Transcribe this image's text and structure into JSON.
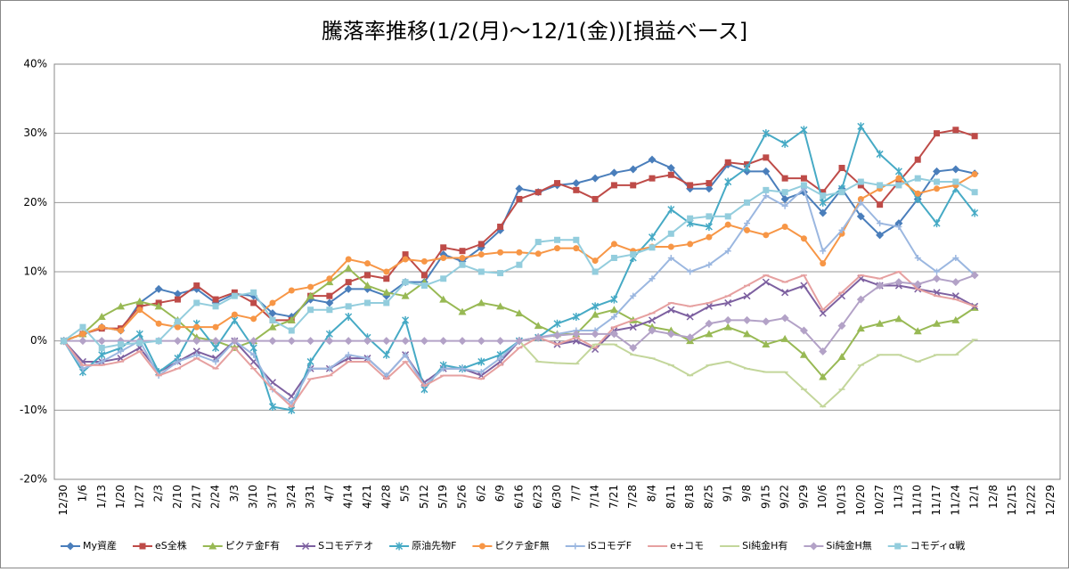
{
  "chart_data": {
    "type": "line",
    "title": "騰落率推移(1/2(月)～12/1(金))[損益ベース]",
    "categories": [
      "12/30",
      "1/6",
      "1/13",
      "1/20",
      "1/27",
      "2/3",
      "2/10",
      "2/17",
      "2/24",
      "3/3",
      "3/10",
      "3/17",
      "3/24",
      "3/31",
      "4/7",
      "4/14",
      "4/21",
      "4/28",
      "5/5",
      "5/12",
      "5/19",
      "5/26",
      "6/2",
      "6/9",
      "6/16",
      "6/23",
      "6/30",
      "7/7",
      "7/14",
      "7/21",
      "7/28",
      "8/4",
      "8/11",
      "8/18",
      "8/25",
      "9/1",
      "9/8",
      "9/15",
      "9/22",
      "9/29",
      "10/6",
      "10/13",
      "10/20",
      "10/27",
      "11/3",
      "11/10",
      "11/17",
      "11/24",
      "12/1",
      "12/8",
      "12/15",
      "12/22",
      "12/29"
    ],
    "ylim": [
      -20,
      40
    ],
    "yticks": [
      {
        "value": -20,
        "label": "-20%"
      },
      {
        "value": -10,
        "label": "-10%"
      },
      {
        "value": 0,
        "label": "0%"
      },
      {
        "value": 10,
        "label": "10%"
      },
      {
        "value": 20,
        "label": "20%"
      },
      {
        "value": 30,
        "label": "30%"
      },
      {
        "value": 40,
        "label": "40%"
      }
    ],
    "grid": true,
    "legend": "bottom",
    "series": [
      {
        "name": "My資産",
        "color": "#4a7ebb",
        "marker": "diamond",
        "values": [
          0,
          1,
          2,
          1.5,
          5.5,
          7.5,
          6.8,
          7.5,
          5.5,
          6.8,
          6.5,
          4,
          3.5,
          6,
          5.5,
          7.5,
          7.5,
          6.5,
          8.5,
          8.5,
          12.5,
          11.5,
          13.5,
          16,
          22,
          21.5,
          22.5,
          22.8,
          23.5,
          24.3,
          24.8,
          26.2,
          25,
          22,
          22,
          25.5,
          24.5,
          24.5,
          20.5,
          21.5,
          18.5,
          22,
          18,
          15.3,
          17,
          20.5,
          24.5,
          24.8,
          24.2,
          null,
          null,
          null,
          null
        ]
      },
      {
        "name": "eS全株",
        "color": "#be4b48",
        "marker": "square",
        "values": [
          0,
          1,
          1.8,
          1.8,
          5,
          5.5,
          6,
          8,
          6,
          7,
          5.5,
          3,
          3,
          6.5,
          6.5,
          8.5,
          9.5,
          9,
          12.5,
          9.5,
          13.5,
          13,
          14,
          16.5,
          20.5,
          21.5,
          22.8,
          21.8,
          20.5,
          22.5,
          22.5,
          23.5,
          24,
          22.5,
          22.8,
          25.8,
          25.5,
          26.5,
          23.5,
          23.5,
          21.5,
          25,
          22.5,
          19.7,
          23,
          26.2,
          30,
          30.5,
          29.6,
          null,
          null,
          null,
          null
        ]
      },
      {
        "name": "ピクテ金F有",
        "color": "#98b954",
        "marker": "triangle",
        "values": [
          0,
          1,
          3.5,
          5,
          5.7,
          5,
          3,
          0.5,
          0,
          -1,
          0,
          2,
          3,
          6.5,
          8.5,
          10.5,
          8,
          7,
          6.5,
          8.5,
          6,
          4.2,
          5.5,
          5,
          4,
          2.2,
          1,
          1,
          3.8,
          4.5,
          3,
          2,
          1.5,
          0,
          1,
          2,
          1,
          -0.5,
          0.3,
          -2,
          -5.2,
          -2.3,
          1.8,
          2.5,
          3.2,
          1.4,
          2.5,
          3,
          4.8,
          null,
          null,
          null,
          null
        ]
      },
      {
        "name": "Sコモデテオ",
        "color": "#7d60a0",
        "marker": "x",
        "values": [
          0,
          -3,
          -3,
          -2.5,
          -1,
          -4.5,
          -3,
          -1.5,
          -2.5,
          0,
          -3,
          -6,
          -8,
          -4,
          -4,
          -2.5,
          -2.5,
          -5,
          -2,
          -6,
          -4,
          -4,
          -5,
          -3,
          0,
          0.5,
          -0.5,
          0,
          -1.2,
          1.5,
          2,
          3,
          4.5,
          3.5,
          5,
          5.5,
          6.5,
          8.5,
          7,
          8,
          4,
          6.5,
          9,
          8,
          8,
          7.5,
          7,
          6.5,
          5,
          null,
          null,
          null,
          null
        ]
      },
      {
        "name": "原油先物F",
        "color": "#46aac5",
        "marker": "star",
        "values": [
          0,
          -4.5,
          -2,
          -1,
          1,
          -4.5,
          -2.5,
          2.5,
          -1,
          3,
          -1,
          -9.5,
          -10,
          -3,
          1,
          3.5,
          0.5,
          -2,
          3,
          -7,
          -3.5,
          -4,
          -3,
          -2,
          0,
          0.5,
          2.5,
          3.5,
          5,
          6,
          12,
          15,
          19,
          17,
          16.5,
          23,
          25,
          30,
          28.5,
          30.5,
          20,
          22,
          31,
          27,
          24.5,
          20.5,
          17,
          22,
          18.5,
          null,
          null,
          null,
          null
        ]
      },
      {
        "name": "ピクテ金F無",
        "color": "#f79646",
        "marker": "circle",
        "values": [
          0,
          1,
          2,
          1.5,
          4.5,
          2.5,
          2,
          2,
          2,
          3.8,
          3.2,
          5.5,
          7.3,
          7.8,
          9,
          11.8,
          11.2,
          10,
          11.8,
          11.5,
          12,
          12,
          12.5,
          12.8,
          12.8,
          12.6,
          13.4,
          13.4,
          11.6,
          14,
          13,
          13.6,
          13.6,
          14,
          15,
          16.8,
          16,
          15.3,
          16.5,
          14.8,
          11.2,
          15.5,
          20.5,
          22,
          23.5,
          21.3,
          22,
          22.5,
          24.1,
          null,
          null,
          null,
          null
        ]
      },
      {
        "name": "iSコモデF",
        "color": "#9bb7e0",
        "marker": "plus",
        "values": [
          0,
          -4,
          -3,
          -1.5,
          0,
          -5,
          -3,
          -2,
          -3,
          0,
          -2,
          -7,
          -9,
          -4,
          -4,
          -2,
          -2.5,
          -5,
          -2,
          -6.5,
          -4,
          -4,
          -4.5,
          -2.5,
          0,
          0.5,
          1,
          1.5,
          1.5,
          3.5,
          6.5,
          9,
          12,
          10,
          11,
          13,
          17,
          21,
          19.5,
          22,
          13,
          16,
          20,
          17,
          16.5,
          12,
          10,
          12,
          9.5,
          null,
          null,
          null,
          null
        ]
      },
      {
        "name": "e+コモ",
        "color": "#e6a0a0",
        "marker": "dash",
        "values": [
          0,
          -3.5,
          -3.5,
          -3,
          -1.5,
          -5,
          -4,
          -2.5,
          -4,
          -1,
          -4,
          -7,
          -9.5,
          -5.5,
          -5,
          -3,
          -3,
          -5.5,
          -3,
          -6.5,
          -5,
          -5,
          -5.5,
          -3.5,
          -1,
          0.5,
          -0.5,
          0.5,
          -1,
          2,
          3,
          4,
          5.5,
          5,
          5.5,
          6.5,
          8,
          9.5,
          8.5,
          9.5,
          4.5,
          7,
          9.5,
          9,
          10,
          7.5,
          6.5,
          6,
          5,
          null,
          null,
          null,
          null
        ]
      },
      {
        "name": "Si純金H有",
        "color": "#c3d69b",
        "marker": "dash",
        "values": [
          null,
          null,
          null,
          null,
          null,
          null,
          null,
          null,
          null,
          null,
          null,
          null,
          null,
          null,
          null,
          null,
          null,
          null,
          null,
          null,
          null,
          null,
          null,
          null,
          0,
          -3,
          -3.2,
          -3.3,
          -0.5,
          -0.5,
          -2,
          -2.5,
          -3.5,
          -5,
          -3.5,
          -3,
          -4,
          -4.5,
          -4.5,
          -7,
          -9.5,
          -7,
          -3.5,
          -2,
          -2,
          -3,
          -2,
          -2,
          0.2,
          null,
          null,
          null,
          null
        ]
      },
      {
        "name": "Si純金H無",
        "color": "#b3a2c7",
        "marker": "diamond",
        "values": [
          0,
          0,
          0,
          0,
          0,
          0,
          0,
          0,
          0,
          0,
          0,
          0,
          0,
          0,
          0,
          0,
          0,
          0,
          0,
          0,
          0,
          0,
          0,
          0,
          0,
          0.5,
          0.8,
          1,
          1,
          1,
          -1,
          1.5,
          1,
          0.5,
          2.5,
          3,
          3,
          2.8,
          3.3,
          1.5,
          -1.5,
          2.2,
          6,
          8,
          8.5,
          8.2,
          9,
          8.5,
          9.5,
          null,
          null,
          null,
          null
        ]
      },
      {
        "name": "コモディα戦",
        "color": "#93cddd",
        "marker": "square",
        "values": [
          0,
          2,
          -1,
          -0.5,
          -0.3,
          0,
          2.8,
          5.5,
          5,
          6.5,
          7,
          3,
          1.5,
          4.5,
          4.5,
          5,
          5.5,
          5.5,
          8.5,
          8,
          9,
          11,
          10,
          9.8,
          11,
          14.3,
          14.6,
          14.6,
          10,
          12,
          12.5,
          13.5,
          15.5,
          17.7,
          18,
          18,
          20,
          21.8,
          21.5,
          22.5,
          21,
          21.5,
          23,
          22.5,
          22.5,
          23.5,
          23,
          23,
          21.5,
          null,
          null,
          null,
          null
        ]
      }
    ]
  }
}
